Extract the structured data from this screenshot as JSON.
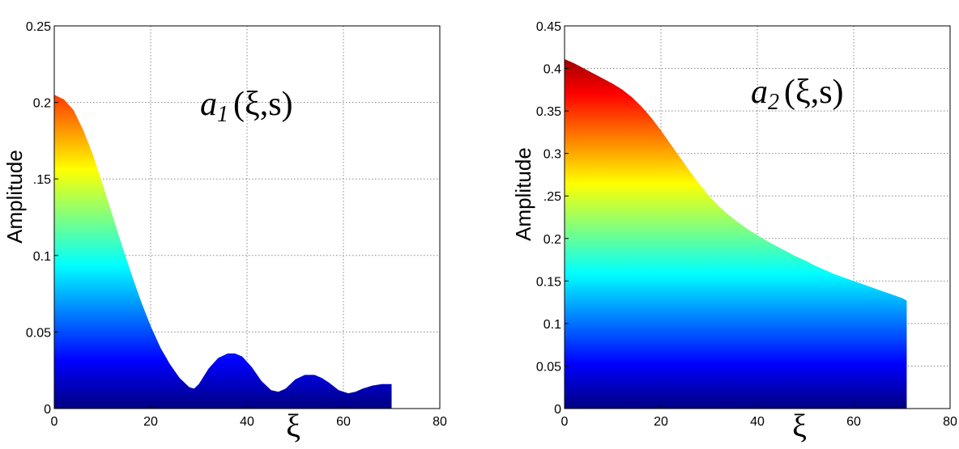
{
  "chart_data": [
    {
      "type": "area",
      "annotation": {
        "var": "a",
        "sub": "1",
        "args": "(ξ,s)"
      },
      "xlabel": "ξ",
      "ylabel": "Amplitude",
      "xlim": [
        0,
        80
      ],
      "ylim": [
        0,
        0.25
      ],
      "x_ticks": [
        0,
        20,
        40,
        60,
        80
      ],
      "x_tick_labels": [
        "0",
        "20",
        "40",
        "60",
        "80"
      ],
      "y_ticks": [
        0,
        0.05,
        0.1,
        0.15,
        0.2,
        0.25
      ],
      "y_tick_labels": [
        "0",
        "0.05",
        "0.1",
        ".15",
        "0.2",
        "0.25"
      ],
      "grid": true,
      "colormap": "jet",
      "series": [
        {
          "x": [
            0,
            2,
            4,
            6,
            8,
            10,
            12,
            14,
            16,
            18,
            20,
            22,
            24,
            26,
            28,
            29,
            30,
            32,
            34,
            36,
            37.5,
            39,
            41,
            43,
            45,
            46.5,
            48,
            50,
            52,
            54,
            55.5,
            57,
            59,
            61,
            62.5,
            64,
            66,
            68,
            70
          ],
          "values": [
            0.205,
            0.202,
            0.195,
            0.182,
            0.166,
            0.147,
            0.127,
            0.107,
            0.088,
            0.07,
            0.054,
            0.04,
            0.029,
            0.02,
            0.014,
            0.013,
            0.016,
            0.026,
            0.033,
            0.036,
            0.036,
            0.034,
            0.027,
            0.018,
            0.012,
            0.011,
            0.013,
            0.019,
            0.022,
            0.022,
            0.02,
            0.017,
            0.012,
            0.01,
            0.011,
            0.013,
            0.015,
            0.016,
            0.016
          ]
        }
      ]
    },
    {
      "type": "area",
      "annotation": {
        "var": "a",
        "sub": "2",
        "args": "(ξ,s)"
      },
      "xlabel": "ξ",
      "ylabel": "Amplitude",
      "xlim": [
        0,
        80
      ],
      "ylim": [
        0,
        0.45
      ],
      "x_ticks": [
        0,
        20,
        40,
        60,
        80
      ],
      "x_tick_labels": [
        "0",
        "20",
        "40",
        "60",
        "80"
      ],
      "y_ticks": [
        0,
        0.05,
        0.1,
        0.15,
        0.2,
        0.25,
        0.3,
        0.35,
        0.4,
        0.45
      ],
      "y_tick_labels": [
        "0",
        "0.05",
        "0.1",
        "0.15",
        "0.2",
        ".25",
        "0.3",
        "0.35",
        "0.4",
        "0.45"
      ],
      "grid": true,
      "colormap": "jet",
      "series": [
        {
          "x": [
            0,
            2,
            4,
            6,
            8,
            10,
            12,
            14,
            16,
            18,
            20,
            22,
            24,
            26,
            28,
            30,
            32,
            34,
            36,
            38,
            40,
            42,
            44,
            46,
            48,
            50,
            52,
            54,
            56,
            58,
            60,
            62,
            64,
            66,
            68,
            70,
            71
          ],
          "values": [
            0.411,
            0.406,
            0.4,
            0.394,
            0.388,
            0.382,
            0.375,
            0.366,
            0.355,
            0.342,
            0.327,
            0.311,
            0.295,
            0.279,
            0.264,
            0.25,
            0.238,
            0.228,
            0.219,
            0.211,
            0.204,
            0.197,
            0.191,
            0.185,
            0.179,
            0.174,
            0.168,
            0.163,
            0.158,
            0.154,
            0.15,
            0.146,
            0.142,
            0.138,
            0.134,
            0.13,
            0.127
          ]
        }
      ]
    }
  ]
}
